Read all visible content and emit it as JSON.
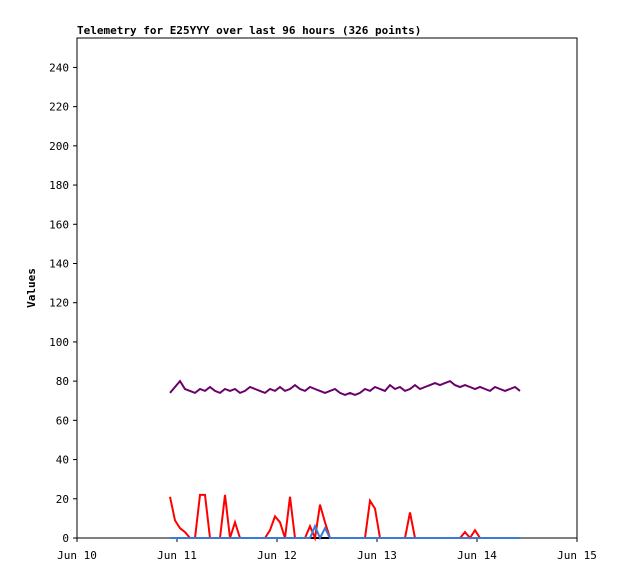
{
  "chart_data": {
    "type": "line",
    "title": "Telemetry for E25YYY over last 96 hours (326 points)",
    "ylabel": "Values",
    "xlim": [
      10,
      15
    ],
    "xticks": [
      {
        "value": 10,
        "label": "Jun 10"
      },
      {
        "value": 11,
        "label": "Jun 11"
      },
      {
        "value": 12,
        "label": "Jun 12"
      },
      {
        "value": 13,
        "label": "Jun 13"
      },
      {
        "value": 14,
        "label": "Jun 14"
      },
      {
        "value": 15,
        "label": "Jun 15"
      }
    ],
    "ylim": [
      0,
      255
    ],
    "yticks": [
      0,
      20,
      40,
      60,
      80,
      100,
      120,
      140,
      160,
      180,
      200,
      220,
      240
    ],
    "grid": false,
    "x": [
      10.93,
      10.98,
      11.03,
      11.08,
      11.13,
      11.18,
      11.23,
      11.28,
      11.33,
      11.38,
      11.43,
      11.48,
      11.53,
      11.58,
      11.63,
      11.68,
      11.73,
      11.78,
      11.83,
      11.88,
      11.93,
      11.98,
      12.03,
      12.08,
      12.13,
      12.18,
      12.23,
      12.28,
      12.33,
      12.38,
      12.43,
      12.48,
      12.53,
      12.58,
      12.63,
      12.68,
      12.73,
      12.78,
      12.83,
      12.88,
      12.93,
      12.98,
      13.03,
      13.08,
      13.13,
      13.18,
      13.23,
      13.28,
      13.33,
      13.38,
      13.43,
      13.48,
      13.53,
      13.58,
      13.63,
      13.68,
      13.73,
      13.78,
      13.83,
      13.88,
      13.93,
      13.98,
      14.03,
      14.08,
      14.13,
      14.18,
      14.23,
      14.28,
      14.33,
      14.38,
      14.43
    ],
    "series": [
      {
        "color": "#000000",
        "values": [
          0,
          0,
          0,
          0,
          0,
          0,
          0,
          0,
          0,
          0,
          0,
          0,
          0,
          0,
          0,
          0,
          0,
          0,
          0,
          0,
          0,
          0,
          0,
          0,
          0,
          0,
          0,
          0,
          0,
          0,
          0,
          0,
          0,
          0,
          0,
          0,
          0,
          0,
          0,
          0,
          0,
          0,
          0,
          0,
          0,
          0,
          0,
          0,
          0,
          0,
          0,
          0,
          0,
          0,
          0,
          0,
          0,
          0,
          0,
          0,
          0,
          0,
          0,
          0,
          0,
          0,
          0,
          0,
          0,
          0,
          0
        ]
      },
      {
        "color": "#ff0000",
        "values": [
          21,
          9,
          5,
          3,
          0,
          0,
          22,
          22,
          0,
          0,
          0,
          22,
          0,
          8,
          0,
          0,
          0,
          0,
          0,
          0,
          4,
          11,
          8,
          0,
          21,
          0,
          0,
          0,
          6,
          0,
          17,
          8,
          0,
          0,
          0,
          0,
          0,
          0,
          0,
          0,
          19,
          15,
          0,
          0,
          0,
          0,
          0,
          0,
          13,
          0,
          0,
          0,
          0,
          0,
          0,
          0,
          0,
          0,
          0,
          3,
          0,
          4,
          0,
          0,
          0,
          0,
          0,
          0,
          0,
          0,
          0
        ]
      },
      {
        "color": "#3a7bd5",
        "values": [
          0,
          0,
          0,
          0,
          0,
          0,
          0,
          0,
          0,
          0,
          0,
          0,
          0,
          0,
          0,
          0,
          0,
          0,
          0,
          0,
          0,
          0,
          0,
          0,
          0,
          0,
          0,
          0,
          0,
          6,
          0,
          5,
          0,
          0,
          0,
          0,
          0,
          0,
          0,
          0,
          0,
          0,
          0,
          0,
          0,
          0,
          0,
          0,
          0,
          0,
          0,
          0,
          0,
          0,
          0,
          0,
          0,
          0,
          0,
          0,
          0,
          0,
          0,
          0,
          0,
          0,
          0,
          0,
          0,
          0,
          0
        ]
      },
      {
        "color": "#6a006a",
        "values": [
          74,
          77,
          80,
          76,
          75,
          74,
          76,
          75,
          77,
          75,
          74,
          76,
          75,
          76,
          74,
          75,
          77,
          76,
          75,
          74,
          76,
          75,
          77,
          75,
          76,
          78,
          76,
          75,
          77,
          76,
          75,
          74,
          75,
          76,
          74,
          73,
          74,
          73,
          74,
          76,
          75,
          77,
          76,
          75,
          78,
          76,
          77,
          75,
          76,
          78,
          76,
          77,
          78,
          79,
          78,
          79,
          80,
          78,
          77,
          78,
          77,
          76,
          77,
          76,
          75,
          77,
          76,
          75,
          76,
          77,
          75
        ]
      }
    ]
  }
}
